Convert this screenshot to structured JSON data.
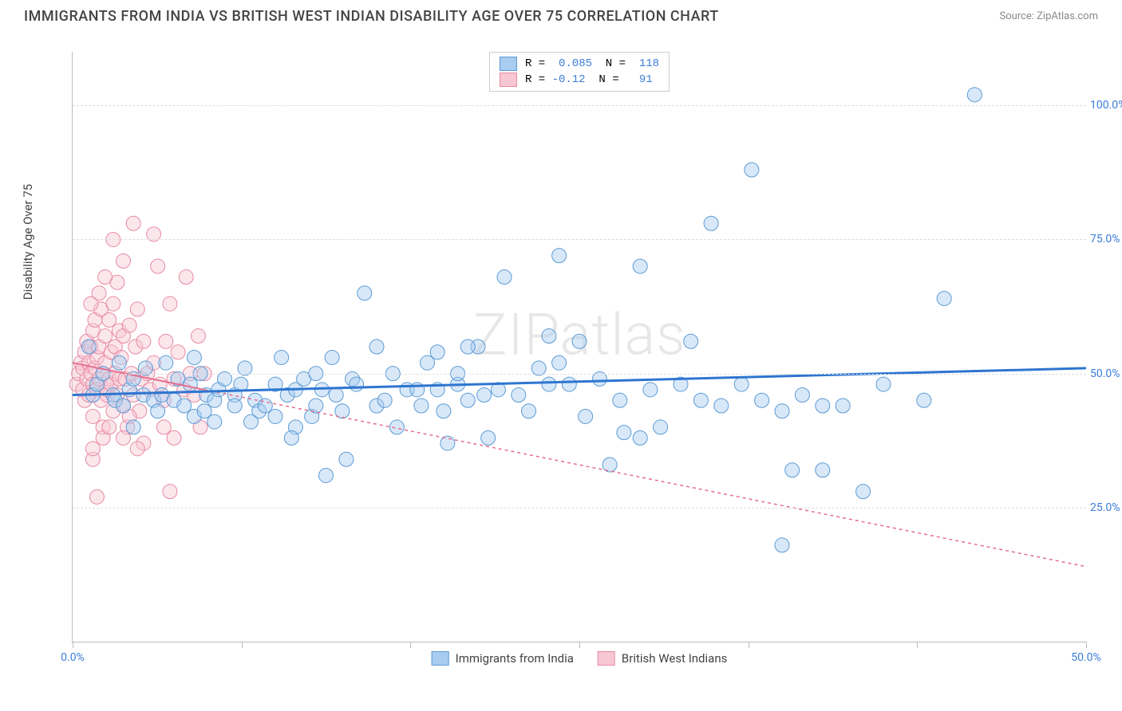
{
  "header": {
    "title": "IMMIGRANTS FROM INDIA VS BRITISH WEST INDIAN DISABILITY AGE OVER 75 CORRELATION CHART",
    "source": "Source: ZipAtlas.com"
  },
  "chart": {
    "type": "scatter",
    "watermark": "ZIPatlas",
    "xlim": [
      0,
      50
    ],
    "ylim": [
      0,
      110
    ],
    "y_ticks": [
      25,
      50,
      75,
      100
    ],
    "y_tick_labels": [
      "25.0%",
      "50.0%",
      "75.0%",
      "100.0%"
    ],
    "x_ticks": [
      0,
      50
    ],
    "x_tick_labels": [
      "0.0%",
      "50.0%"
    ],
    "x_minor_ticks": [
      0,
      8.33,
      16.67,
      25,
      33.33,
      41.67,
      50
    ],
    "y_axis_label": "Disability Age Over 75",
    "background_color": "#ffffff",
    "grid_color": "#dddddd",
    "marker_radius": 9,
    "marker_opacity": 0.45,
    "series_blue": {
      "name": "Immigrants from India",
      "fill": "#a8cdf0",
      "stroke": "#5c9bd6",
      "line_color": "#2e75d0",
      "line_width": 3,
      "R": 0.085,
      "N": 118,
      "trend": {
        "x1": 0,
        "y1": 46,
        "x2": 50,
        "y2": 51
      },
      "points": [
        [
          1,
          46
        ],
        [
          1.2,
          48
        ],
        [
          0.8,
          55
        ],
        [
          1.5,
          50
        ],
        [
          2,
          46
        ],
        [
          2.1,
          45
        ],
        [
          2.3,
          52
        ],
        [
          2.5,
          44
        ],
        [
          2.8,
          47
        ],
        [
          3,
          40
        ],
        [
          3,
          49
        ],
        [
          3.5,
          46
        ],
        [
          3.6,
          51
        ],
        [
          4,
          45
        ],
        [
          4.2,
          43
        ],
        [
          4.4,
          46
        ],
        [
          4.6,
          52
        ],
        [
          5,
          45
        ],
        [
          5.2,
          49
        ],
        [
          5.5,
          44
        ],
        [
          5.8,
          48
        ],
        [
          6,
          53
        ],
        [
          6,
          42
        ],
        [
          6.3,
          50
        ],
        [
          6.6,
          46
        ],
        [
          7,
          45
        ],
        [
          7,
          41
        ],
        [
          7.2,
          47
        ],
        [
          7.5,
          49
        ],
        [
          8,
          46
        ],
        [
          8,
          44
        ],
        [
          8.3,
          48
        ],
        [
          8.5,
          51
        ],
        [
          9,
          45
        ],
        [
          9.2,
          43
        ],
        [
          9.5,
          44
        ],
        [
          10,
          48
        ],
        [
          10,
          42
        ],
        [
          10.3,
          53
        ],
        [
          10.6,
          46
        ],
        [
          11,
          40
        ],
        [
          11,
          47
        ],
        [
          11.4,
          49
        ],
        [
          11.8,
          42
        ],
        [
          12,
          44
        ],
        [
          12.3,
          47
        ],
        [
          12.8,
          53
        ],
        [
          13,
          46
        ],
        [
          13.3,
          43
        ],
        [
          13.8,
          49
        ],
        [
          14,
          48
        ],
        [
          14.4,
          65
        ],
        [
          15,
          44
        ],
        [
          15.4,
          45
        ],
        [
          15.8,
          50
        ],
        [
          16,
          40
        ],
        [
          16.5,
          47
        ],
        [
          17,
          47
        ],
        [
          17.2,
          44
        ],
        [
          18,
          47
        ],
        [
          18.3,
          43
        ],
        [
          19,
          48
        ],
        [
          19,
          50
        ],
        [
          19.5,
          45
        ],
        [
          20,
          55
        ],
        [
          20.3,
          46
        ],
        [
          21,
          47
        ],
        [
          21.3,
          68
        ],
        [
          22,
          46
        ],
        [
          22.5,
          43
        ],
        [
          23,
          51
        ],
        [
          23.5,
          48
        ],
        [
          24,
          52
        ],
        [
          24.5,
          48
        ],
        [
          25,
          56
        ],
        [
          25.3,
          42
        ],
        [
          26,
          49
        ],
        [
          27,
          45
        ],
        [
          27.2,
          39
        ],
        [
          28,
          38
        ],
        [
          28.5,
          47
        ],
        [
          29,
          40
        ],
        [
          30,
          48
        ],
        [
          30.5,
          56
        ],
        [
          31,
          45
        ],
        [
          31.5,
          78
        ],
        [
          32,
          44
        ],
        [
          33,
          48
        ],
        [
          33.5,
          88
        ],
        [
          34,
          45
        ],
        [
          35,
          43
        ],
        [
          35.5,
          32
        ],
        [
          36,
          46
        ],
        [
          37,
          44
        ],
        [
          38,
          44
        ],
        [
          39,
          28
        ],
        [
          40,
          48
        ],
        [
          42,
          45
        ],
        [
          43,
          64
        ],
        [
          44.5,
          102
        ],
        [
          12.5,
          31
        ],
        [
          13.5,
          34
        ],
        [
          28,
          70
        ],
        [
          24,
          72
        ],
        [
          23.5,
          57
        ],
        [
          18,
          54
        ],
        [
          12,
          50
        ],
        [
          26.5,
          33
        ],
        [
          35,
          18
        ],
        [
          37,
          32
        ],
        [
          15,
          55
        ],
        [
          20.5,
          38
        ],
        [
          18.5,
          37
        ],
        [
          19.5,
          55
        ],
        [
          17.5,
          52
        ],
        [
          6.5,
          43
        ],
        [
          8.8,
          41
        ],
        [
          10.8,
          38
        ]
      ]
    },
    "series_pink": {
      "name": "British West Indians",
      "fill": "#f7c7d4",
      "stroke": "#e88aa3",
      "line_color": "#e56e8f",
      "line_dash": "4,4",
      "line_width": 1.5,
      "R": -0.12,
      "N": 91,
      "trend_solid": {
        "x1": 0,
        "y1": 52,
        "x2": 6.5,
        "y2": 47
      },
      "trend_dash": {
        "x1": 6.5,
        "y1": 47,
        "x2": 50,
        "y2": 14
      },
      "points": [
        [
          0.2,
          48
        ],
        [
          0.3,
          50
        ],
        [
          0.4,
          52
        ],
        [
          0.5,
          47
        ],
        [
          0.5,
          51
        ],
        [
          0.6,
          45
        ],
        [
          0.6,
          54
        ],
        [
          0.7,
          49
        ],
        [
          0.7,
          56
        ],
        [
          0.8,
          52
        ],
        [
          0.8,
          46
        ],
        [
          0.9,
          50
        ],
        [
          0.9,
          55
        ],
        [
          1,
          58
        ],
        [
          1,
          42
        ],
        [
          1,
          48
        ],
        [
          1.1,
          51
        ],
        [
          1.1,
          60
        ],
        [
          1.2,
          47
        ],
        [
          1.2,
          53
        ],
        [
          1.3,
          49
        ],
        [
          1.3,
          55
        ],
        [
          1.4,
          45
        ],
        [
          1.4,
          62
        ],
        [
          1.5,
          50
        ],
        [
          1.5,
          40
        ],
        [
          1.6,
          52
        ],
        [
          1.6,
          57
        ],
        [
          1.7,
          46
        ],
        [
          1.7,
          47
        ],
        [
          1.8,
          49
        ],
        [
          1.8,
          60
        ],
        [
          1.9,
          54
        ],
        [
          1.9,
          48
        ],
        [
          2,
          63
        ],
        [
          2,
          43
        ],
        [
          2.1,
          55
        ],
        [
          2.1,
          50
        ],
        [
          2.2,
          46
        ],
        [
          2.2,
          67
        ],
        [
          2.3,
          58
        ],
        [
          2.3,
          49
        ],
        [
          2.4,
          53
        ],
        [
          2.5,
          57
        ],
        [
          2.5,
          44
        ],
        [
          2.6,
          49
        ],
        [
          2.7,
          40
        ],
        [
          2.8,
          59
        ],
        [
          2.9,
          50
        ],
        [
          3,
          46
        ],
        [
          3,
          78
        ],
        [
          3.1,
          55
        ],
        [
          3.2,
          62
        ],
        [
          3.3,
          43
        ],
        [
          3.4,
          49
        ],
        [
          3.5,
          56
        ],
        [
          3.5,
          37
        ],
        [
          3.7,
          50
        ],
        [
          3.8,
          47
        ],
        [
          4,
          76
        ],
        [
          4,
          52
        ],
        [
          4.2,
          70
        ],
        [
          4.3,
          48
        ],
        [
          4.5,
          45
        ],
        [
          4.6,
          56
        ],
        [
          4.8,
          63
        ],
        [
          5,
          49
        ],
        [
          5,
          38
        ],
        [
          5.2,
          54
        ],
        [
          5.5,
          47
        ],
        [
          5.6,
          68
        ],
        [
          5.8,
          50
        ],
        [
          6,
          46
        ],
        [
          6.2,
          57
        ],
        [
          6.3,
          40
        ],
        [
          6.5,
          50
        ],
        [
          1,
          34
        ],
        [
          1,
          36
        ],
        [
          2.5,
          38
        ],
        [
          3.2,
          36
        ],
        [
          1.5,
          38
        ],
        [
          1.8,
          40
        ],
        [
          2.8,
          42
        ],
        [
          4.5,
          40
        ],
        [
          1.2,
          27
        ],
        [
          4.8,
          28
        ],
        [
          2,
          75
        ],
        [
          2.5,
          71
        ],
        [
          1.6,
          68
        ],
        [
          1.3,
          65
        ],
        [
          0.9,
          63
        ]
      ]
    },
    "bottom_legend": [
      {
        "label": "Immigrants from India",
        "fill": "#a8cdf0",
        "stroke": "#5c9bd6"
      },
      {
        "label": "British West Indians",
        "fill": "#f7c7d4",
        "stroke": "#e88aa3"
      }
    ]
  }
}
